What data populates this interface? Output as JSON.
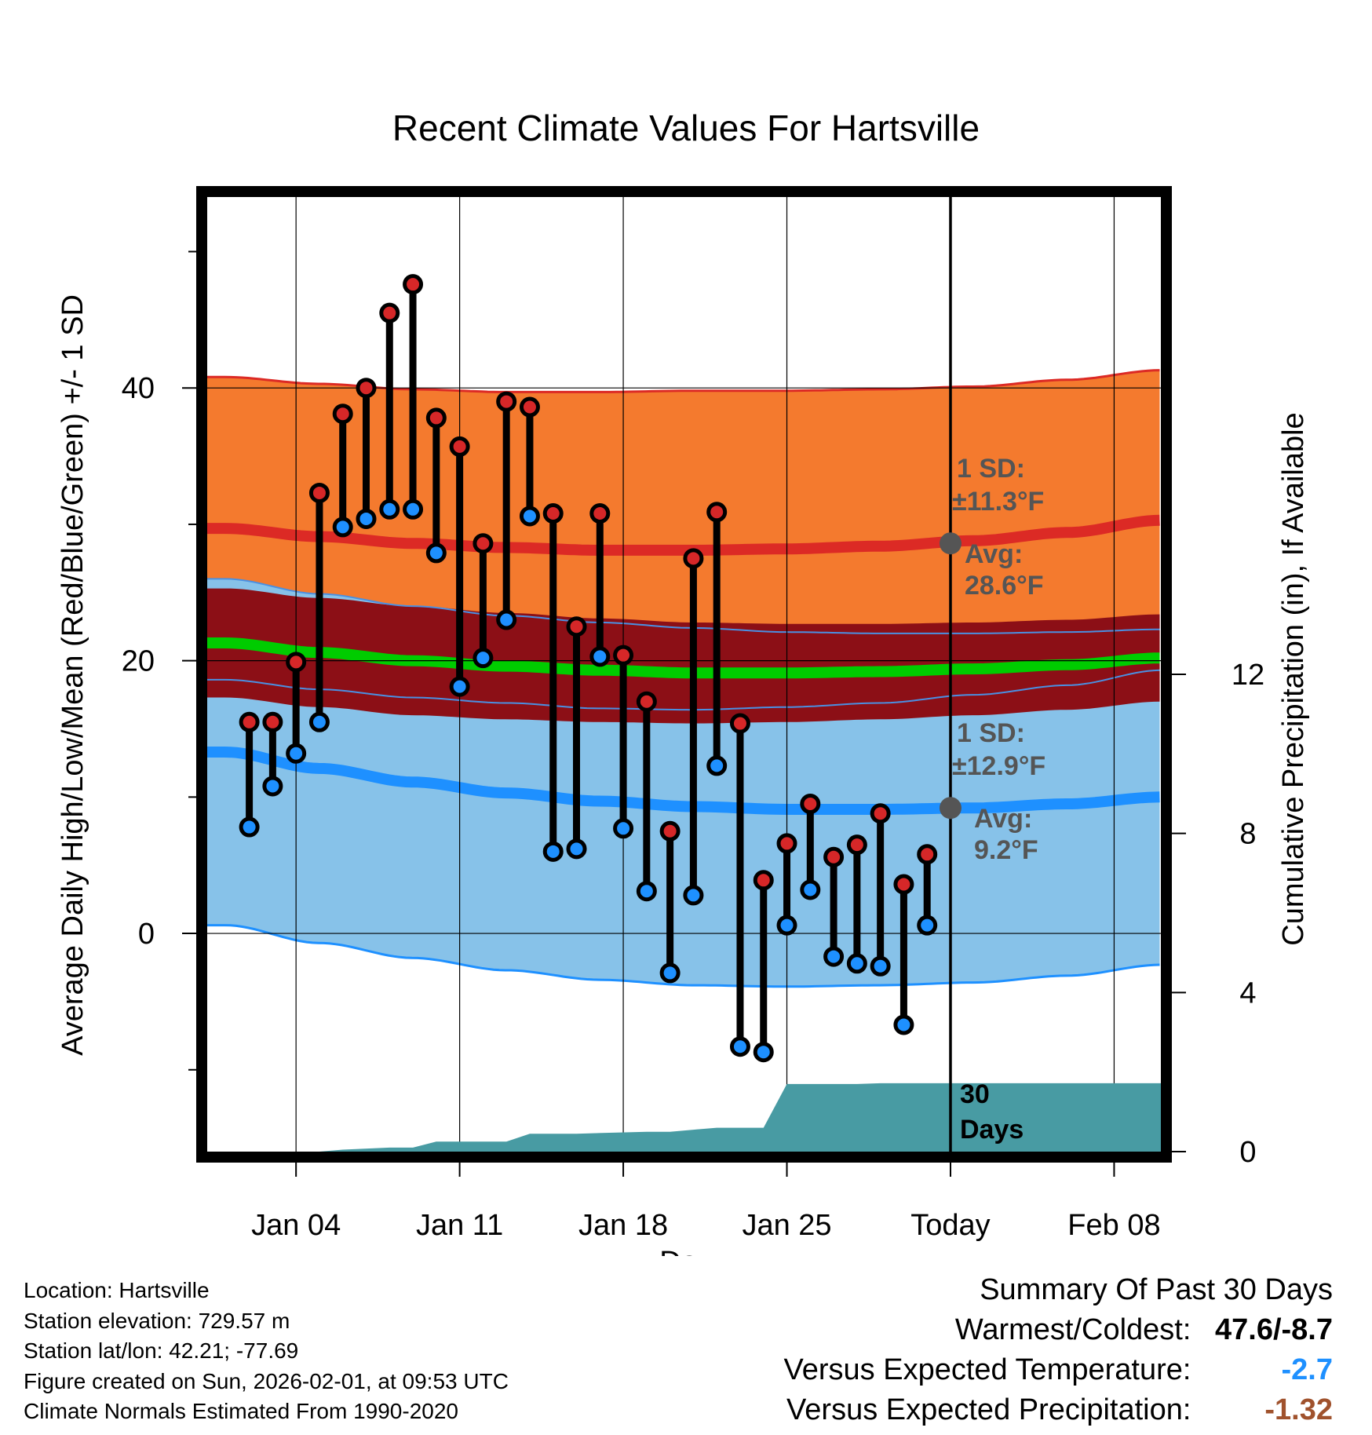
{
  "colors": {
    "high_band": "#f47a2e",
    "high_line": "#dc2a25",
    "mean_band": "#8c0f16",
    "mean_line": "#00cc00",
    "low_band": "#87c2e9",
    "low_line": "#1e90ff",
    "precip_fill": "#489ba3",
    "marker_high": "#d62728",
    "marker_low": "#1e90ff",
    "annotation": "#555555",
    "summary_temp": "#1e90ff",
    "summary_precip": "#a0522d"
  },
  "chart_data": {
    "type": "line",
    "title": "Recent Climate Values For Hartsville",
    "xlabel": "Day",
    "ylabel": "Average Daily High/Low/Mean (Red/Blue/Green) +/- 1 SD",
    "y2label": "Cumulative Precipitation (in), If Available",
    "x_range": [
      "Jan 01",
      "Feb 10"
    ],
    "ylim": [
      -16,
      54
    ],
    "y2lim": [
      0,
      24
    ],
    "x_ticks": [
      {
        "day": 4,
        "label": "Jan 04"
      },
      {
        "day": 11,
        "label": "Jan 11"
      },
      {
        "day": 18,
        "label": "Jan 18"
      },
      {
        "day": 25,
        "label": "Jan 25"
      },
      {
        "day": 32,
        "label": "Today"
      },
      {
        "day": 39,
        "label": "Feb 08"
      }
    ],
    "y_ticks": [
      0,
      20,
      40
    ],
    "y_minor_ticks": [
      -10,
      10,
      30,
      50
    ],
    "y2_ticks": [
      0,
      4,
      8,
      12
    ],
    "today_day": 32,
    "observed": {
      "days": [
        2,
        3,
        4,
        5,
        6,
        7,
        8,
        9,
        10,
        11,
        12,
        13,
        14,
        15,
        16,
        17,
        18,
        19,
        20,
        21,
        22,
        23,
        24,
        25,
        26,
        27,
        28,
        29,
        30,
        31
      ],
      "highs": [
        15.5,
        15.5,
        19.9,
        32.3,
        38.1,
        40.0,
        45.5,
        47.6,
        37.8,
        35.7,
        28.6,
        39.0,
        38.6,
        30.8,
        22.5,
        30.8,
        20.4,
        17.0,
        7.5,
        27.5,
        30.9,
        15.4,
        3.9,
        6.6,
        9.5,
        5.6,
        6.5,
        8.8,
        3.6,
        5.8
      ],
      "lows": [
        7.8,
        10.8,
        13.2,
        15.5,
        29.8,
        30.4,
        31.1,
        31.1,
        27.9,
        18.1,
        20.2,
        23.0,
        30.6,
        6.0,
        6.2,
        20.3,
        7.7,
        3.1,
        -2.9,
        2.8,
        12.3,
        -8.3,
        -8.7,
        0.6,
        3.2,
        -1.7,
        -2.2,
        -2.4,
        -6.7,
        0.6
      ]
    },
    "normals": {
      "days": [
        1,
        5,
        9,
        13,
        17,
        21,
        25,
        29,
        33,
        37,
        41
      ],
      "high": [
        29.7,
        29.1,
        28.6,
        28.3,
        28.1,
        28.1,
        28.2,
        28.4,
        28.8,
        29.4,
        30.3
      ],
      "high_sd": [
        11.1,
        11.2,
        11.3,
        11.4,
        11.6,
        11.7,
        11.6,
        11.5,
        11.3,
        11.2,
        11.0
      ],
      "mean": [
        21.3,
        20.6,
        20.0,
        19.6,
        19.3,
        19.1,
        19.1,
        19.2,
        19.4,
        19.7,
        20.2
      ],
      "mean_sd": [
        4.0,
        4.0,
        4.0,
        3.9,
        3.8,
        3.7,
        3.6,
        3.5,
        3.4,
        3.3,
        3.2
      ],
      "low": [
        13.3,
        12.1,
        11.1,
        10.3,
        9.7,
        9.3,
        9.1,
        9.1,
        9.2,
        9.5,
        10.0
      ],
      "low_sd": [
        12.7,
        12.8,
        12.9,
        13.0,
        13.1,
        13.1,
        13.0,
        12.9,
        12.8,
        12.6,
        12.3
      ]
    },
    "precip": {
      "days": [
        1,
        5,
        6,
        8,
        9,
        10,
        11,
        12,
        13,
        14,
        16,
        19,
        20,
        21,
        22,
        23,
        24,
        25,
        26,
        27,
        28,
        29,
        30,
        31,
        32,
        41
      ],
      "cumulative": [
        0.0,
        0.0,
        0.05,
        0.1,
        0.1,
        0.25,
        0.25,
        0.25,
        0.25,
        0.45,
        0.45,
        0.5,
        0.5,
        0.55,
        0.6,
        0.6,
        0.6,
        1.7,
        1.7,
        1.7,
        1.7,
        1.72,
        1.72,
        1.72,
        1.72,
        1.72
      ]
    },
    "annotations": {
      "high_sd_label": "1 SD:",
      "high_sd_value": "±11.3°F",
      "high_avg_label": "Avg:",
      "high_avg_value": "28.6°F",
      "high_avg": 28.6,
      "low_sd_label": "1 SD:",
      "low_sd_value": "±12.9°F",
      "low_avg_label": "Avg:",
      "low_avg_value": "9.2°F",
      "low_avg": 9.2,
      "days_num": "30",
      "days_word": "Days"
    }
  },
  "footer": {
    "location": "Location: Hartsville",
    "elevation": "Station elevation: 729.57 m",
    "latlon": "Station lat/lon: 42.21; -77.69",
    "created": "Figure created on Sun, 2026-02-01, at 09:53 UTC",
    "normals": "Climate Normals Estimated From 1990-2020"
  },
  "summary": {
    "title": "Summary Of Past 30 Days",
    "warmest_label": "Warmest/Coldest:",
    "warmest_value": "47.6/-8.7",
    "temp_label": "Versus Expected Temperature:",
    "temp_value": "-2.7",
    "precip_label": "Versus Expected Precipitation:",
    "precip_value": "-1.32"
  }
}
